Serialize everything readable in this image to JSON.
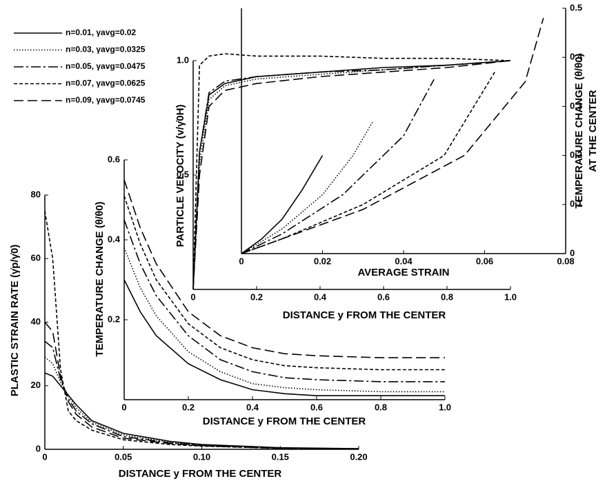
{
  "legend": [
    {
      "name": "n=0.01, γavg=0.02",
      "dash": "none"
    },
    {
      "name": "n=0.03, γavg=0.0325",
      "dash": "1.5,2.5"
    },
    {
      "name": "n=0.05, γavg=0.0475",
      "dash": "14,4,3,4"
    },
    {
      "name": "n=0.07, γavg=0.0625",
      "dash": "5,3"
    },
    {
      "name": "n=0.09, γavg=0.0745",
      "dash": "14,6"
    }
  ],
  "chart_data": [
    {
      "type": "line",
      "xlabel": "DISTANCE y FROM THE CENTER",
      "ylabel": "PLASTIC STRAIN RATE (γ̇p/γ̇0)",
      "xlim": [
        0,
        0.2
      ],
      "ylim": [
        0,
        80
      ],
      "xticks": [
        0,
        0.05,
        {
          "value": 0.1,
          "label": "0.10"
        },
        0.15,
        {
          "value": 0.2,
          "label": "0.20"
        }
      ],
      "yticks": [
        0,
        20,
        40,
        60,
        80
      ],
      "x": [
        0,
        0.005,
        0.01,
        0.015,
        0.02,
        0.03,
        0.05,
        0.08,
        0.1,
        0.15,
        0.2
      ],
      "series": [
        {
          "color": "#000",
          "dash": "none",
          "values": [
            24,
            23,
            20,
            17,
            14,
            9,
            5,
            2.5,
            1.5,
            0.5,
            0.2
          ]
        },
        {
          "color": "#000",
          "dash": "1.5,2.5",
          "values": [
            29,
            27,
            21,
            17,
            13,
            8.5,
            4.5,
            2.2,
            1.3,
            0.4,
            0.2
          ]
        },
        {
          "color": "#000",
          "dash": "14,4,3,4",
          "values": [
            34,
            32,
            22,
            16,
            12,
            8,
            4,
            2,
            1.2,
            0.4,
            0.1
          ]
        },
        {
          "color": "#000",
          "dash": "5,3",
          "values": [
            75,
            60,
            25,
            12,
            9,
            6,
            3,
            1.5,
            1,
            0.3,
            0.1
          ]
        },
        {
          "color": "#000",
          "dash": "14,6",
          "values": [
            40,
            37,
            23,
            15,
            11,
            7,
            3.5,
            1.8,
            1.1,
            0.3,
            0.1
          ]
        }
      ]
    },
    {
      "type": "line",
      "xlabel": "DISTANCE y FROM THE CENTER",
      "ylabel": "TEMPERATURE CHANGE (θ/θ0)",
      "xlim": [
        0,
        1
      ],
      "ylim": [
        0,
        0.6
      ],
      "xticks": [
        0,
        0.2,
        0.4,
        0.6,
        0.8,
        {
          "value": 1,
          "label": "1.0"
        }
      ],
      "yticks": [
        0.2,
        0.4,
        0.6
      ],
      "x": [
        0,
        0.05,
        0.1,
        0.2,
        0.3,
        0.4,
        0.5,
        0.6,
        0.8,
        1
      ],
      "series": [
        {
          "color": "#000",
          "dash": "none",
          "values": [
            0.3,
            0.22,
            0.16,
            0.09,
            0.05,
            0.025,
            0.015,
            0.01,
            0.01,
            0.01
          ]
        },
        {
          "color": "#000",
          "dash": "1.5,2.5",
          "values": [
            0.38,
            0.28,
            0.21,
            0.12,
            0.07,
            0.04,
            0.03,
            0.025,
            0.02,
            0.02
          ]
        },
        {
          "color": "#000",
          "dash": "14,4,3,4",
          "values": [
            0.45,
            0.34,
            0.26,
            0.16,
            0.1,
            0.07,
            0.055,
            0.05,
            0.045,
            0.045
          ]
        },
        {
          "color": "#000",
          "dash": "5,3",
          "values": [
            0.51,
            0.39,
            0.3,
            0.19,
            0.13,
            0.1,
            0.085,
            0.08,
            0.075,
            0.075
          ]
        },
        {
          "color": "#000",
          "dash": "14,6",
          "values": [
            0.55,
            0.43,
            0.34,
            0.22,
            0.16,
            0.13,
            0.115,
            0.11,
            0.105,
            0.105
          ]
        }
      ]
    },
    {
      "type": "line",
      "xlabel": "DISTANCE y FROM THE CENTER",
      "ylabel": "PARTICLE VELOCITY (v/γ̇0H)",
      "xlim": [
        0,
        1
      ],
      "ylim": [
        0,
        1
      ],
      "xticks": [
        0,
        0.2,
        0.4,
        0.6,
        0.8,
        {
          "value": 1,
          "label": "1.0"
        }
      ],
      "yticks": [
        0.5,
        {
          "value": 1,
          "label": "1.0"
        }
      ],
      "x": [
        0,
        0.02,
        0.05,
        0.1,
        0.2,
        0.4,
        0.6,
        0.8,
        1
      ],
      "series": [
        {
          "color": "#000",
          "dash": "none",
          "values": [
            0,
            0.6,
            0.85,
            0.9,
            0.93,
            0.95,
            0.97,
            0.98,
            1
          ]
        },
        {
          "color": "#000",
          "dash": "1.5,2.5",
          "values": [
            0,
            0.55,
            0.83,
            0.89,
            0.92,
            0.94,
            0.96,
            0.98,
            1
          ]
        },
        {
          "color": "#000",
          "dash": "14,4,3,4",
          "values": [
            0,
            0.6,
            0.86,
            0.91,
            0.93,
            0.95,
            0.96,
            0.98,
            1
          ]
        },
        {
          "color": "#000",
          "dash": "5,3",
          "values": [
            0,
            0.98,
            1.02,
            1.03,
            1.02,
            1.02,
            1.01,
            1.01,
            1
          ]
        },
        {
          "color": "#000",
          "dash": "14,6",
          "values": [
            0,
            0.5,
            0.8,
            0.87,
            0.9,
            0.93,
            0.95,
            0.97,
            1
          ]
        }
      ]
    },
    {
      "type": "line",
      "xlabel": "AVERAGE STRAIN",
      "ylabel": [
        "TEMPERATURE CHANGE (θ/θ0)",
        "AT THE CENTER"
      ],
      "y_axis_side": "right",
      "xlim": [
        0,
        0.08
      ],
      "ylim": [
        0,
        0.5
      ],
      "xticks": [
        0,
        0.02,
        0.04,
        0.06,
        0.08
      ],
      "yticks": [
        0,
        0.1,
        0.2,
        0.3,
        0.4,
        0.5
      ],
      "series": [
        {
          "color": "#000",
          "dash": "none",
          "x": [
            0,
            0.005,
            0.01,
            0.015,
            0.02
          ],
          "values": [
            0,
            0.03,
            0.07,
            0.13,
            0.2
          ]
        },
        {
          "color": "#000",
          "dash": "1.5,2.5",
          "x": [
            0,
            0.01,
            0.02,
            0.0275,
            0.0325
          ],
          "values": [
            0,
            0.05,
            0.12,
            0.2,
            0.27
          ]
        },
        {
          "color": "#000",
          "dash": "14,4,3,4",
          "x": [
            0,
            0.01,
            0.025,
            0.04,
            0.0475
          ],
          "values": [
            0,
            0.04,
            0.12,
            0.24,
            0.355
          ]
        },
        {
          "color": "#000",
          "dash": "5,3",
          "x": [
            0,
            0.01,
            0.03,
            0.05,
            0.0625
          ],
          "values": [
            0,
            0.03,
            0.1,
            0.2,
            0.37
          ]
        },
        {
          "color": "#000",
          "dash": "14,6",
          "x": [
            0,
            0.01,
            0.03,
            0.055,
            0.07,
            0.0745
          ],
          "values": [
            0,
            0.03,
            0.09,
            0.2,
            0.35,
            0.48
          ]
        }
      ]
    }
  ]
}
